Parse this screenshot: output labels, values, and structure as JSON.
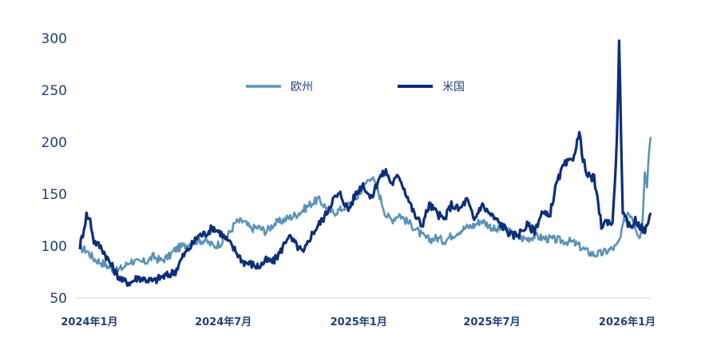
{
  "chart_data": {
    "type": "line",
    "title": "",
    "xlabel": "",
    "ylabel": "",
    "ylim": [
      50,
      300
    ],
    "yticks": [
      50,
      100,
      150,
      200,
      250,
      300
    ],
    "xlim": [
      "2024-01-01",
      "2026-02-15"
    ],
    "xtick_labels": [
      "2024年1月",
      "2024年7月",
      "2025年1月",
      "2025年7月",
      "2026年1月"
    ],
    "xtick_dates": [
      "2024-01-01",
      "2024-07-01",
      "2025-01-01",
      "2025-07-01",
      "2026-01-01"
    ],
    "grid": false,
    "legend_position": "top-center",
    "series": [
      {
        "name": "欧州",
        "color": "#5b93b7",
        "points": [
          [
            "2024-01-01",
            98
          ],
          [
            "2024-01-10",
            96
          ],
          [
            "2024-01-20",
            88
          ],
          [
            "2024-01-31",
            84
          ],
          [
            "2024-02-10",
            80
          ],
          [
            "2024-02-20",
            76
          ],
          [
            "2024-03-01",
            80
          ],
          [
            "2024-03-10",
            86
          ],
          [
            "2024-03-20",
            84
          ],
          [
            "2024-03-31",
            85
          ],
          [
            "2024-04-10",
            90
          ],
          [
            "2024-04-20",
            86
          ],
          [
            "2024-05-01",
            90
          ],
          [
            "2024-05-10",
            97
          ],
          [
            "2024-05-20",
            100
          ],
          [
            "2024-05-31",
            103
          ],
          [
            "2024-06-10",
            106
          ],
          [
            "2024-06-20",
            105
          ],
          [
            "2024-07-01",
            100
          ],
          [
            "2024-07-10",
            103
          ],
          [
            "2024-07-20",
            110
          ],
          [
            "2024-07-31",
            123
          ],
          [
            "2024-08-10",
            124
          ],
          [
            "2024-08-20",
            117
          ],
          [
            "2024-08-31",
            118
          ],
          [
            "2024-09-10",
            114
          ],
          [
            "2024-09-20",
            121
          ],
          [
            "2024-09-30",
            124
          ],
          [
            "2024-10-10",
            127
          ],
          [
            "2024-10-20",
            130
          ],
          [
            "2024-10-31",
            135
          ],
          [
            "2024-11-10",
            141
          ],
          [
            "2024-11-20",
            145
          ],
          [
            "2024-11-30",
            138
          ],
          [
            "2024-12-10",
            132
          ],
          [
            "2024-12-20",
            135
          ],
          [
            "2024-12-31",
            140
          ],
          [
            "2025-01-10",
            145
          ],
          [
            "2025-01-20",
            157
          ],
          [
            "2025-01-31",
            168
          ],
          [
            "2025-02-10",
            152
          ],
          [
            "2025-02-20",
            130
          ],
          [
            "2025-02-28",
            125
          ],
          [
            "2025-03-10",
            131
          ],
          [
            "2025-03-20",
            124
          ],
          [
            "2025-03-31",
            118
          ],
          [
            "2025-04-10",
            110
          ],
          [
            "2025-04-20",
            106
          ],
          [
            "2025-04-30",
            108
          ],
          [
            "2025-05-10",
            105
          ],
          [
            "2025-05-20",
            110
          ],
          [
            "2025-05-31",
            115
          ],
          [
            "2025-06-10",
            118
          ],
          [
            "2025-06-20",
            120
          ],
          [
            "2025-06-30",
            125
          ],
          [
            "2025-07-10",
            120
          ],
          [
            "2025-07-20",
            115
          ],
          [
            "2025-07-31",
            118
          ],
          [
            "2025-08-10",
            112
          ],
          [
            "2025-08-20",
            108
          ],
          [
            "2025-08-31",
            107
          ],
          [
            "2025-09-10",
            110
          ],
          [
            "2025-09-20",
            108
          ],
          [
            "2025-09-30",
            107
          ],
          [
            "2025-10-10",
            106
          ],
          [
            "2025-10-20",
            105
          ],
          [
            "2025-10-31",
            104
          ],
          [
            "2025-11-10",
            100
          ],
          [
            "2025-11-20",
            95
          ],
          [
            "2025-11-30",
            92
          ],
          [
            "2025-12-10",
            93
          ],
          [
            "2025-12-20",
            96
          ],
          [
            "2025-12-31",
            100
          ],
          [
            "2026-01-05",
            108
          ],
          [
            "2026-01-10",
            125
          ],
          [
            "2026-01-15",
            133
          ],
          [
            "2026-01-20",
            130
          ],
          [
            "2026-01-25",
            120
          ],
          [
            "2026-01-31",
            108
          ],
          [
            "2026-02-04",
            125
          ],
          [
            "2026-02-07",
            175
          ],
          [
            "2026-02-10",
            160
          ],
          [
            "2026-02-13",
            195
          ],
          [
            "2026-02-15",
            205
          ]
        ]
      },
      {
        "name": "米国",
        "color": "#0c2f7a",
        "points": [
          [
            "2024-01-01",
            100
          ],
          [
            "2024-01-05",
            112
          ],
          [
            "2024-01-10",
            130
          ],
          [
            "2024-01-15",
            125
          ],
          [
            "2024-01-20",
            105
          ],
          [
            "2024-01-31",
            98
          ],
          [
            "2024-02-10",
            85
          ],
          [
            "2024-02-20",
            73
          ],
          [
            "2024-02-29",
            66
          ],
          [
            "2024-03-10",
            65
          ],
          [
            "2024-03-20",
            70
          ],
          [
            "2024-03-31",
            68
          ],
          [
            "2024-04-10",
            66
          ],
          [
            "2024-04-20",
            70
          ],
          [
            "2024-04-30",
            72
          ],
          [
            "2024-05-10",
            76
          ],
          [
            "2024-05-20",
            90
          ],
          [
            "2024-05-31",
            100
          ],
          [
            "2024-06-10",
            110
          ],
          [
            "2024-06-20",
            112
          ],
          [
            "2024-06-30",
            118
          ],
          [
            "2024-07-10",
            113
          ],
          [
            "2024-07-20",
            105
          ],
          [
            "2024-07-31",
            95
          ],
          [
            "2024-08-10",
            85
          ],
          [
            "2024-08-20",
            83
          ],
          [
            "2024-08-31",
            80
          ],
          [
            "2024-09-10",
            86
          ],
          [
            "2024-09-20",
            85
          ],
          [
            "2024-09-30",
            95
          ],
          [
            "2024-10-10",
            110
          ],
          [
            "2024-10-20",
            102
          ],
          [
            "2024-10-31",
            93
          ],
          [
            "2024-11-10",
            110
          ],
          [
            "2024-11-20",
            120
          ],
          [
            "2024-11-30",
            130
          ],
          [
            "2024-12-10",
            145
          ],
          [
            "2024-12-20",
            150
          ],
          [
            "2024-12-31",
            135
          ],
          [
            "2025-01-10",
            150
          ],
          [
            "2025-01-20",
            160
          ],
          [
            "2025-01-31",
            145
          ],
          [
            "2025-02-10",
            165
          ],
          [
            "2025-02-20",
            172
          ],
          [
            "2025-02-28",
            160
          ],
          [
            "2025-03-10",
            168
          ],
          [
            "2025-03-20",
            150
          ],
          [
            "2025-03-31",
            130
          ],
          [
            "2025-04-10",
            120
          ],
          [
            "2025-04-20",
            140
          ],
          [
            "2025-04-30",
            132
          ],
          [
            "2025-05-10",
            125
          ],
          [
            "2025-05-20",
            140
          ],
          [
            "2025-05-31",
            135
          ],
          [
            "2025-06-10",
            145
          ],
          [
            "2025-06-20",
            125
          ],
          [
            "2025-06-30",
            140
          ],
          [
            "2025-07-10",
            132
          ],
          [
            "2025-07-20",
            125
          ],
          [
            "2025-07-31",
            118
          ],
          [
            "2025-08-10",
            110
          ],
          [
            "2025-08-20",
            112
          ],
          [
            "2025-08-31",
            120
          ],
          [
            "2025-09-10",
            115
          ],
          [
            "2025-09-20",
            132
          ],
          [
            "2025-09-30",
            128
          ],
          [
            "2025-10-10",
            160
          ],
          [
            "2025-10-20",
            178
          ],
          [
            "2025-10-31",
            182
          ],
          [
            "2025-11-10",
            208
          ],
          [
            "2025-11-15",
            185
          ],
          [
            "2025-11-20",
            168
          ],
          [
            "2025-11-30",
            165
          ],
          [
            "2025-12-10",
            120
          ],
          [
            "2025-12-20",
            125
          ],
          [
            "2025-12-25",
            120
          ],
          [
            "2025-12-31",
            200
          ],
          [
            "2026-01-03",
            296
          ],
          [
            "2026-01-06",
            200
          ],
          [
            "2026-01-08",
            130
          ],
          [
            "2026-01-12",
            125
          ],
          [
            "2026-01-18",
            118
          ],
          [
            "2026-01-25",
            125
          ],
          [
            "2026-01-31",
            120
          ],
          [
            "2026-02-06",
            115
          ],
          [
            "2026-02-10",
            118
          ],
          [
            "2026-02-15",
            132
          ]
        ]
      }
    ]
  }
}
